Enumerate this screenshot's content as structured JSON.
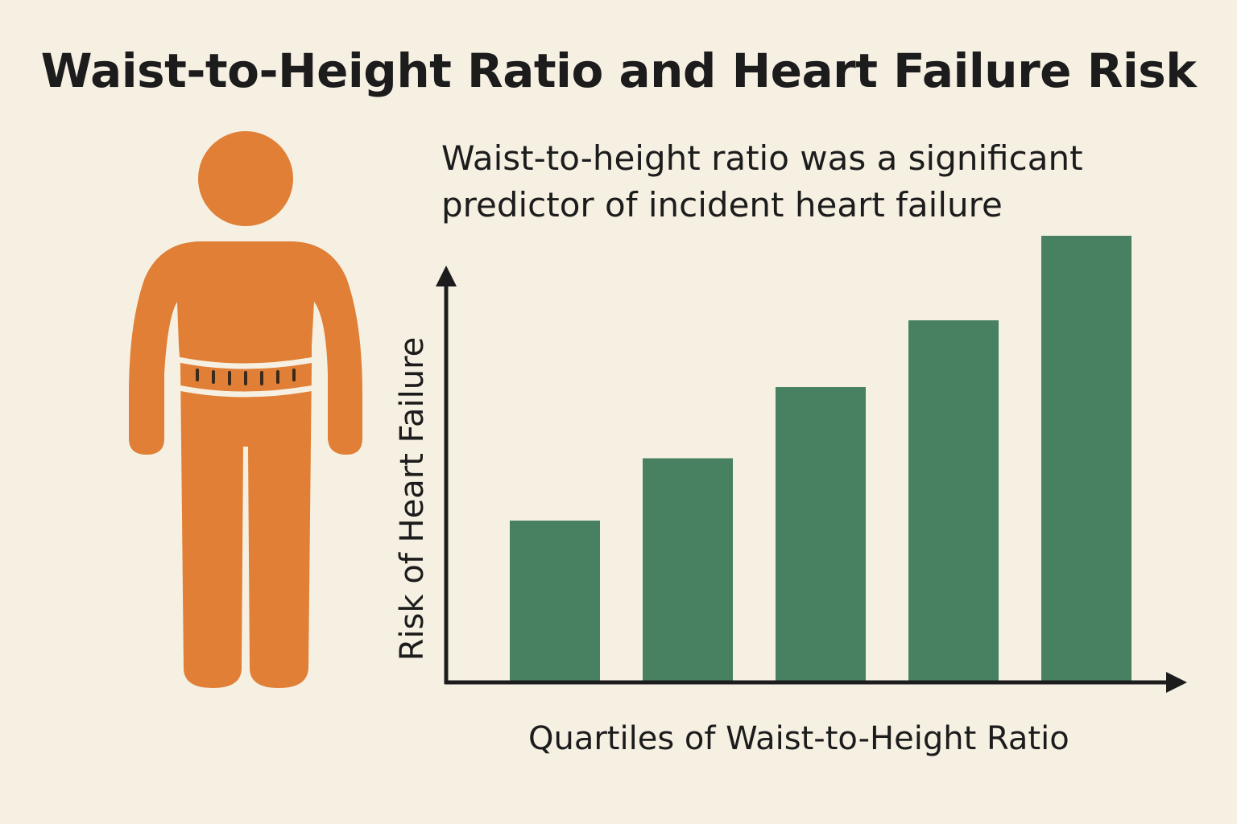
{
  "colors": {
    "background": "#f6f0e3",
    "figure": "#e07f35",
    "bar": "#478162",
    "axis": "#1c1c1c",
    "belt_marks": "#3a2a1c",
    "belt_gap": "#f6f0e3"
  },
  "icons": {
    "figure": "person-waist-measure-icon"
  },
  "chart_data": {
    "type": "bar",
    "title": "Waist-to-Height Ratio and Heart Failure Risk",
    "subtitle_lines": [
      "Waist-to-height ratio was a significant",
      "predictor of incident heart failure"
    ],
    "xlabel": "Quartiles of Waist-to-Height Ratio",
    "ylabel": "Risk of Heart Failure",
    "categories": [
      "",
      "",
      "",
      "",
      ""
    ],
    "values": [
      36,
      50,
      66,
      81,
      100
    ],
    "ylim": [
      0,
      100
    ],
    "grid": false,
    "legend": "none",
    "tick_labels": "none"
  }
}
